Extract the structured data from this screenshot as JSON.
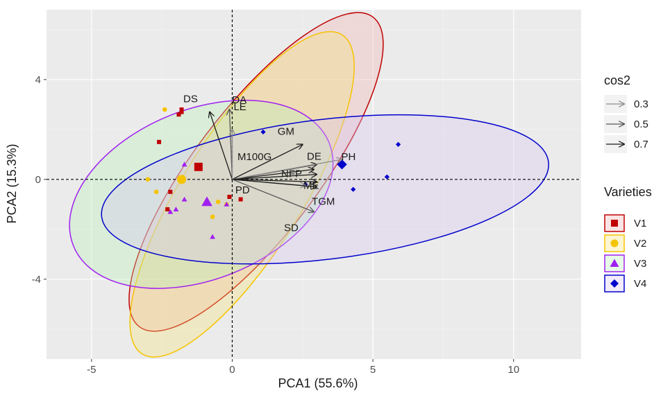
{
  "chart_data": {
    "type": "scatter",
    "title": "",
    "xlabel": "PCA1 (55.6%)",
    "ylabel": "PCA2 (15.3%)",
    "xlim": [
      -6.6,
      12.4
    ],
    "ylim": [
      -7.2,
      6.8
    ],
    "xticks": [
      -5,
      0,
      5,
      10
    ],
    "yticks": [
      -4,
      0,
      4
    ],
    "grid": true,
    "panel_background": "#ebebeb",
    "series": [
      {
        "name": "V1",
        "color": "#c00000",
        "shape": "square",
        "fill": "#f2b3b3",
        "points": [
          [
            -2.6,
            1.5
          ],
          [
            -1.8,
            2.8
          ],
          [
            -2.2,
            -0.5
          ],
          [
            -0.1,
            -0.7
          ],
          [
            0.3,
            -0.8
          ],
          [
            -2.3,
            -1.2
          ],
          [
            -1.8,
            2.7
          ],
          [
            -1.9,
            2.6
          ]
        ],
        "centroid": [
          -1.2,
          0.5
        ],
        "ellipse": {
          "cx": 0.85,
          "cy": 0.3,
          "rx": 6.9,
          "ry": 2.5,
          "angle": -53
        }
      },
      {
        "name": "V2",
        "color": "#f5c400",
        "shape": "circle",
        "fill": "#f5e27a",
        "points": [
          [
            -2.4,
            2.8
          ],
          [
            -2.7,
            -0.5
          ],
          [
            -3.0,
            0.0
          ],
          [
            -0.5,
            -0.9
          ],
          [
            -0.7,
            -1.5
          ],
          [
            -0.2,
            -1.0
          ]
        ],
        "centroid": [
          -1.8,
          0.0
        ],
        "ellipse": {
          "cx": 0.35,
          "cy": -0.6,
          "rx": 6.7,
          "ry": 2.4,
          "angle": -58
        }
      },
      {
        "name": "V3",
        "color": "#a020f0",
        "shape": "triangle",
        "fill": "#b8f0b8",
        "points": [
          [
            -2.2,
            -1.3
          ],
          [
            -1.7,
            0.6
          ],
          [
            -0.7,
            -2.3
          ],
          [
            -0.2,
            -1.0
          ],
          [
            -1.7,
            -0.8
          ],
          [
            -2.0,
            -1.2
          ]
        ],
        "centroid": [
          -0.9,
          -0.9
        ],
        "ellipse": {
          "cx": -1.1,
          "cy": -0.6,
          "rx": 4.9,
          "ry": 3.4,
          "angle": -22
        }
      },
      {
        "name": "V4",
        "color": "#0000cc",
        "shape": "diamond",
        "fill": "#d8c7f2",
        "points": [
          [
            1.1,
            1.9
          ],
          [
            2.6,
            -0.2
          ],
          [
            4.3,
            -0.4
          ],
          [
            5.5,
            0.1
          ],
          [
            5.9,
            1.4
          ]
        ],
        "centroid": [
          3.9,
          0.6
        ],
        "ellipse": {
          "cx": 3.3,
          "cy": -0.4,
          "rx": 8.0,
          "ry": 2.8,
          "angle": -7
        }
      }
    ],
    "variables": [
      {
        "label": "DA",
        "x": -0.1,
        "y": 2.8,
        "cos2": 0.5
      },
      {
        "label": "DS",
        "x": -0.8,
        "y": 2.7,
        "cos2": 0.7
      },
      {
        "label": "LE",
        "x": 0.0,
        "y": 2.0,
        "cos2": 0.3
      },
      {
        "label": "GM",
        "x": 2.5,
        "y": 1.4,
        "cos2": 0.7
      },
      {
        "label": "DE",
        "x": 2.9,
        "y": 0.4,
        "cos2": 0.7
      },
      {
        "label": "M100G",
        "x": 3.0,
        "y": 0.6,
        "cos2": 0.7
      },
      {
        "label": "PH",
        "x": 3.9,
        "y": 0.8,
        "cos2": 0.3
      },
      {
        "label": "NFP",
        "x": 3.0,
        "y": 0.2,
        "cos2": 0.7
      },
      {
        "label": "ME",
        "x": 3.0,
        "y": -0.1,
        "cos2": 0.7
      },
      {
        "label": "PD",
        "x": 2.6,
        "y": -0.25,
        "cos2": 0.3
      },
      {
        "label": "TGM",
        "x": 3.0,
        "y": -0.3,
        "cos2": 0.7
      },
      {
        "label": "SD",
        "x": 2.9,
        "y": -1.3,
        "cos2": 0.5
      }
    ]
  },
  "legend": {
    "cos2_title": "cos2",
    "cos2_levels": [
      {
        "label": "0.3",
        "color": "#8c8c8c"
      },
      {
        "label": "0.5",
        "color": "#555555"
      },
      {
        "label": "0.7",
        "color": "#1a1a1a"
      }
    ],
    "varieties_title": "Varieties"
  }
}
